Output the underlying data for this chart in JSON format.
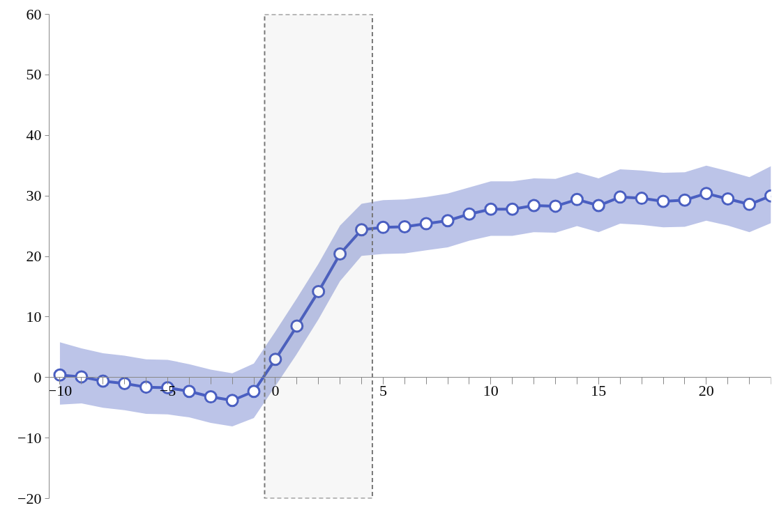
{
  "chart_data": {
    "type": "line",
    "x": [
      -10,
      -9,
      -8,
      -7,
      -6,
      -5,
      -4,
      -3,
      -2,
      -1,
      0,
      1,
      2,
      3,
      4,
      5,
      6,
      7,
      8,
      9,
      10,
      11,
      12,
      13,
      14,
      15,
      16,
      17,
      18,
      19,
      20,
      21,
      22,
      23
    ],
    "series": [
      {
        "color": "#4a5fc1",
        "values": [
          0.4,
          0.1,
          -0.6,
          -1.0,
          -1.6,
          -1.7,
          -2.3,
          -3.2,
          -3.8,
          -2.3,
          3.0,
          8.5,
          14.2,
          20.4,
          24.4,
          24.8,
          24.9,
          25.4,
          25.9,
          27.0,
          27.8,
          27.8,
          28.4,
          28.3,
          29.4,
          28.4,
          29.8,
          29.6,
          29.1,
          29.3,
          30.4,
          29.5,
          28.6,
          30.0
        ],
        "upper": [
          5.8,
          4.8,
          4.0,
          3.6,
          3.0,
          2.9,
          2.2,
          1.3,
          0.7,
          2.3,
          7.6,
          13.1,
          18.8,
          25.1,
          28.7,
          29.3,
          29.4,
          29.8,
          30.4,
          31.4,
          32.4,
          32.4,
          32.9,
          32.8,
          33.9,
          32.9,
          34.4,
          34.2,
          33.8,
          33.9,
          35.0,
          34.1,
          33.1,
          34.9
        ],
        "lower": [
          -4.5,
          -4.3,
          -5.0,
          -5.4,
          -6.0,
          -6.1,
          -6.6,
          -7.5,
          -8.1,
          -6.7,
          -1.4,
          3.9,
          9.6,
          15.9,
          20.1,
          20.4,
          20.5,
          21.0,
          21.5,
          22.6,
          23.4,
          23.4,
          24.0,
          23.9,
          25.0,
          24.0,
          25.4,
          25.2,
          24.8,
          24.9,
          25.9,
          25.1,
          24.0,
          25.5
        ]
      }
    ],
    "xlim": [
      -10.5,
      23
    ],
    "xticks": [
      -10,
      -5,
      0,
      5,
      10,
      15,
      20
    ],
    "ylim": [
      -20,
      60
    ],
    "yticks": [
      -20,
      -10,
      0,
      10,
      20,
      30,
      40,
      50,
      60
    ],
    "bands": [
      {
        "axis": "x",
        "from": -0.5,
        "to": 4.5,
        "color": "#777777"
      }
    ],
    "marker": "circle",
    "line_style": "solid",
    "grid": false
  }
}
